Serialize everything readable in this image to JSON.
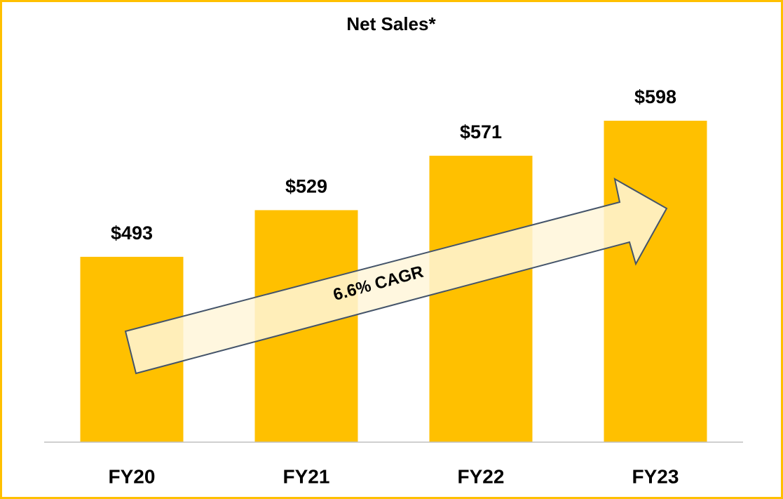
{
  "chart_data": {
    "type": "bar",
    "title": "Net Sales*",
    "categories": [
      "FY20",
      "FY21",
      "FY22",
      "FY23"
    ],
    "values": [
      493,
      529,
      571,
      598
    ],
    "value_labels": [
      "$493",
      "$529",
      "$571",
      "$598"
    ],
    "color": "#FFC000",
    "ylim": [
      350,
      650
    ],
    "annotation": "6.6% CAGR"
  }
}
